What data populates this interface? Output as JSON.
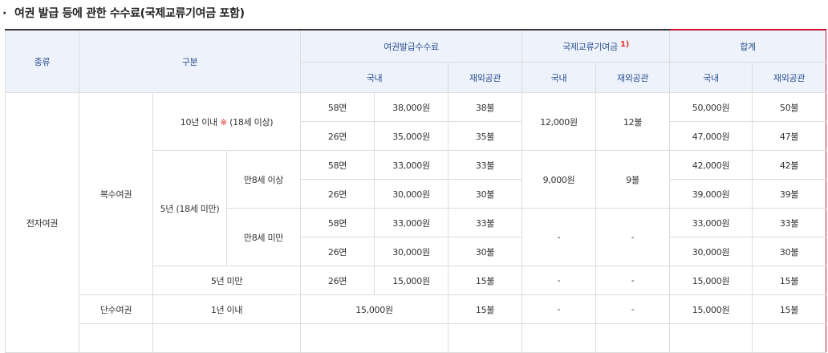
{
  "heading": "여권 발급 등에 관한 수수료(국제교류기여금 포함)",
  "header": {
    "type": "종류",
    "category": "구분",
    "issue_fee": "여권발급수수료",
    "contribution": "국제교류기여금",
    "contribution_footnote": "1)",
    "total": "합계",
    "domestic": "국내",
    "overseas": "재외공관"
  },
  "rows": {
    "electronic": "전자여권",
    "multiple": "복수여권",
    "single": "단수여권",
    "ten_year_prefix": "10년 이내 ",
    "ten_year_mark": "※",
    "ten_year_suffix": " (18세 이상)",
    "five_year_minor": "5년 (18세 미만)",
    "age8_over": "만8세 이상",
    "age8_under": "만8세 미만",
    "under5": "5년 미만",
    "within1": "1년 이내"
  },
  "cells": {
    "r1": {
      "pages": "58면",
      "fee": "38,000원",
      "overseas": "38불",
      "contrib_dom": "12,000원",
      "contrib_ovs": "12불",
      "total_dom": "50,000원",
      "total_ovs": "50불"
    },
    "r2": {
      "pages": "26면",
      "fee": "35,000원",
      "overseas": "35불",
      "total_dom": "47,000원",
      "total_ovs": "47불"
    },
    "r3": {
      "pages": "58면",
      "fee": "33,000원",
      "overseas": "33불",
      "contrib_dom": "9,000원",
      "contrib_ovs": "9불",
      "total_dom": "42,000원",
      "total_ovs": "42불"
    },
    "r4": {
      "pages": "26면",
      "fee": "30,000원",
      "overseas": "30불",
      "total_dom": "39,000원",
      "total_ovs": "39불"
    },
    "r5": {
      "pages": "58면",
      "fee": "33,000원",
      "overseas": "33불",
      "contrib_dom": "-",
      "contrib_ovs": "-",
      "total_dom": "33,000원",
      "total_ovs": "33불"
    },
    "r6": {
      "pages": "26면",
      "fee": "30,000원",
      "overseas": "30불",
      "total_dom": "30,000원",
      "total_ovs": "30불"
    },
    "r7": {
      "pages": "26면",
      "fee": "15,000원",
      "overseas": "15불",
      "contrib_dom": "-",
      "contrib_ovs": "-",
      "total_dom": "15,000원",
      "total_ovs": "15불"
    },
    "r8": {
      "fee": "15,000원",
      "overseas": "15불",
      "contrib_dom": "-",
      "contrib_ovs": "-",
      "total_dom": "15,000원",
      "total_ovs": "15불"
    }
  },
  "colors": {
    "header_bg": "#eef3fb",
    "header_text": "#2a4f8f",
    "highlight_border": "#c8102e",
    "note_mark": "#e0312a"
  }
}
